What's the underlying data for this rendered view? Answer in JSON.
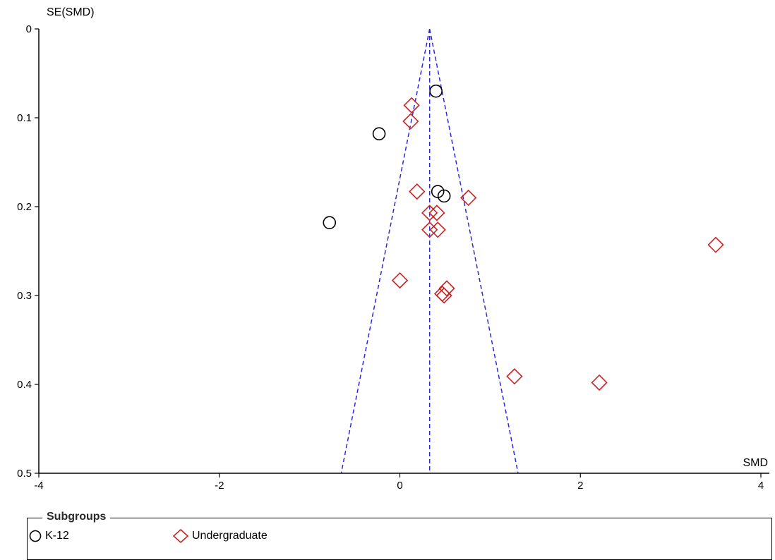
{
  "chart_data": {
    "type": "scatter",
    "title": "",
    "xlabel": "SMD",
    "ylabel": "SE(SMD)",
    "xlim": [
      -4,
      4
    ],
    "ylim": [
      0,
      0.5
    ],
    "y_reversed": true,
    "x_ticks": [
      -4,
      -2,
      0,
      2,
      4
    ],
    "x_tick_labels": [
      "-4",
      "-2",
      "0",
      "2",
      "4"
    ],
    "y_ticks": [
      0,
      0.1,
      0.2,
      0.3,
      0.4,
      0.5
    ],
    "y_tick_labels": [
      "0",
      "0.1",
      "0.2",
      "0.3",
      "0.4",
      "0.5"
    ],
    "grid": false,
    "pooled_estimate": 0.33,
    "funnel_se_max": 0.5,
    "legend": {
      "title": "Subgroups",
      "placement": "bottom"
    },
    "series": [
      {
        "name": "K-12",
        "marker": "circle",
        "color": "#000000",
        "points": [
          {
            "x": 0.4,
            "y": 0.07
          },
          {
            "x": -0.23,
            "y": 0.118
          },
          {
            "x": 0.42,
            "y": 0.183
          },
          {
            "x": 0.49,
            "y": 0.188
          },
          {
            "x": -0.78,
            "y": 0.218
          }
        ]
      },
      {
        "name": "Undergraduate",
        "marker": "diamond",
        "color": "#cc2222",
        "points": [
          {
            "x": 0.13,
            "y": 0.086
          },
          {
            "x": 0.12,
            "y": 0.104
          },
          {
            "x": 0.19,
            "y": 0.183
          },
          {
            "x": 0.76,
            "y": 0.19
          },
          {
            "x": 0.33,
            "y": 0.207
          },
          {
            "x": 0.41,
            "y": 0.207
          },
          {
            "x": 0.33,
            "y": 0.226
          },
          {
            "x": 0.42,
            "y": 0.226
          },
          {
            "x": 3.5,
            "y": 0.243
          },
          {
            "x": 0.0,
            "y": 0.283
          },
          {
            "x": 0.52,
            "y": 0.292
          },
          {
            "x": 0.47,
            "y": 0.298
          },
          {
            "x": 0.49,
            "y": 0.3
          },
          {
            "x": 1.27,
            "y": 0.391
          },
          {
            "x": 2.21,
            "y": 0.398
          }
        ]
      }
    ]
  }
}
